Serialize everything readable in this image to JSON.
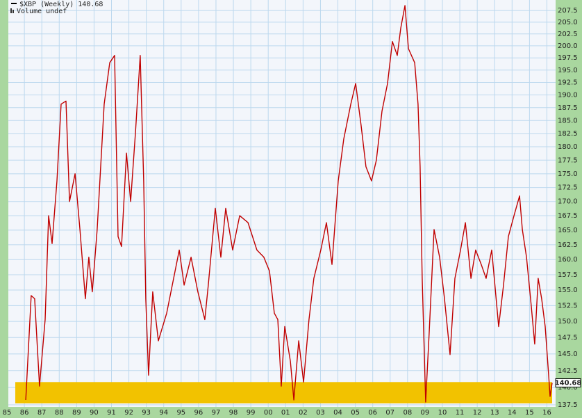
{
  "chart_data": {
    "type": "line",
    "series": [
      {
        "name": "$XBP (Weekly) 140.68",
        "color": "#c00000",
        "values": [
          138.2,
          154.1,
          153.6,
          140.2,
          150.3,
          167.5,
          162.7,
          173.7,
          188.2,
          188.8,
          170.0,
          175.0,
          165.1,
          153.6,
          160.4,
          154.7,
          165.1,
          188.2,
          196.5,
          198.0,
          163.9,
          162.2,
          178.8,
          170.0,
          182.8,
          198.0,
          173.7,
          153.6,
          141.8,
          154.7,
          147.0,
          151.3,
          156.9,
          161.6,
          155.8,
          160.4,
          154.7,
          150.3,
          155.8,
          168.8,
          160.4,
          168.8,
          161.6,
          167.5,
          166.3,
          161.6,
          160.4,
          158.1,
          151.3,
          150.3,
          140.2,
          149.2,
          143.9,
          138.2,
          147.0,
          140.8,
          150.3,
          156.9,
          161.6,
          166.3,
          159.2,
          173.7,
          181.5,
          188.2,
          192.3,
          184.1,
          176.3,
          173.7,
          177.5,
          186.8,
          192.3,
          200.9,
          198.0,
          203.8,
          208.6,
          199.4,
          196.5,
          188.2,
          176.3,
          156.9,
          137.9,
          148.1,
          165.1,
          160.4,
          153.6,
          144.9,
          156.9,
          161.6,
          166.3,
          156.9,
          161.6,
          159.2,
          156.9,
          161.6,
          149.2,
          155.8,
          163.9,
          167.5,
          171.0,
          165.1,
          160.4,
          152.5,
          146.5,
          156.9,
          153.6,
          149.2,
          141.8,
          138.7,
          140.68
        ]
      }
    ],
    "x": [
      1986.08,
      1986.39,
      1986.59,
      1986.87,
      1987.19,
      1987.39,
      1987.59,
      1987.87,
      1988.11,
      1988.39,
      1988.59,
      1988.91,
      1989.19,
      1989.5,
      1989.7,
      1989.9,
      1990.18,
      1990.58,
      1990.9,
      1991.18,
      1991.38,
      1991.58,
      1991.86,
      1992.1,
      1992.38,
      1992.65,
      1992.85,
      1992.97,
      1993.13,
      1993.37,
      1993.69,
      1994.17,
      1994.57,
      1994.89,
      1995.17,
      1995.57,
      1995.96,
      1996.36,
      1996.56,
      1996.96,
      1997.28,
      1997.56,
      1997.96,
      1998.36,
      1998.84,
      1999.35,
      1999.75,
      2000.07,
      2000.35,
      2000.55,
      2000.75,
      2000.95,
      2001.27,
      2001.47,
      2001.75,
      2002.03,
      2002.34,
      2002.62,
      2003.02,
      2003.34,
      2003.66,
      2004.02,
      2004.34,
      2004.74,
      2005.02,
      2005.33,
      2005.61,
      2005.93,
      2006.21,
      2006.53,
      2006.85,
      2007.13,
      2007.41,
      2007.61,
      2007.85,
      2008.05,
      2008.41,
      2008.6,
      2008.72,
      2008.84,
      2009.04,
      2009.24,
      2009.52,
      2009.84,
      2010.12,
      2010.44,
      2010.72,
      2011.04,
      2011.32,
      2011.64,
      2011.91,
      2012.23,
      2012.51,
      2012.83,
      2013.23,
      2013.51,
      2013.79,
      2014.11,
      2014.43,
      2014.59,
      2014.83,
      2015.1,
      2015.3,
      2015.5,
      2015.7,
      2015.9,
      2016.1,
      2016.18,
      2016.3
    ],
    "volume_label": "Volume undef",
    "last_value": 140.68,
    "highlight": {
      "ylim": [
        137.7,
        140.8
      ],
      "color": "#f2c200"
    },
    "xlim": [
      1984.6,
      2016.5
    ],
    "xticks": [
      {
        "value": 1985,
        "label": "85"
      },
      {
        "value": 1986,
        "label": "86"
      },
      {
        "value": 1987,
        "label": "87"
      },
      {
        "value": 1988,
        "label": "88"
      },
      {
        "value": 1989,
        "label": "89"
      },
      {
        "value": 1990,
        "label": "90"
      },
      {
        "value": 1991,
        "label": "91"
      },
      {
        "value": 1992,
        "label": "92"
      },
      {
        "value": 1993,
        "label": "93"
      },
      {
        "value": 1994,
        "label": "94"
      },
      {
        "value": 1995,
        "label": "95"
      },
      {
        "value": 1996,
        "label": "96"
      },
      {
        "value": 1997,
        "label": "97"
      },
      {
        "value": 1998,
        "label": "98"
      },
      {
        "value": 1999,
        "label": "99"
      },
      {
        "value": 2000,
        "label": "00"
      },
      {
        "value": 2001,
        "label": "01"
      },
      {
        "value": 2002,
        "label": "02"
      },
      {
        "value": 2003,
        "label": "03"
      },
      {
        "value": 2004,
        "label": "04"
      },
      {
        "value": 2005,
        "label": "05"
      },
      {
        "value": 2006,
        "label": "06"
      },
      {
        "value": 2007,
        "label": "07"
      },
      {
        "value": 2008,
        "label": "08"
      },
      {
        "value": 2009,
        "label": "09"
      },
      {
        "value": 2010,
        "label": "10"
      },
      {
        "value": 2011,
        "label": "11"
      },
      {
        "value": 2012,
        "label": "12"
      },
      {
        "value": 2013,
        "label": "13"
      },
      {
        "value": 2014,
        "label": "14"
      },
      {
        "value": 2015,
        "label": "15"
      },
      {
        "value": 2016,
        "label": "16"
      }
    ],
    "ylim": [
      137.2,
      209.8
    ],
    "log_scale": true,
    "grid": true,
    "yticks": [
      137.5,
      {
        "value": 140,
        "label": "140.0"
      },
      142.5,
      {
        "value": 145,
        "label": "145.0"
      },
      147.5,
      {
        "value": 150,
        "label": "150.0"
      },
      152.5,
      {
        "value": 155,
        "label": "155.0"
      },
      157.5,
      {
        "value": 160,
        "label": "160.0"
      },
      162.5,
      {
        "value": 165,
        "label": "165.0"
      },
      167.5,
      {
        "value": 170,
        "label": "170.0"
      },
      172.5,
      {
        "value": 175,
        "label": "175.0"
      },
      177.5,
      {
        "value": 180,
        "label": "180.0"
      },
      182.5,
      {
        "value": 185,
        "label": "185.0"
      },
      187.5,
      {
        "value": 190,
        "label": "190.0"
      },
      192.5,
      {
        "value": 195,
        "label": "195.0"
      },
      197.5,
      {
        "value": 200,
        "label": "200.0"
      },
      202.5,
      {
        "value": 205,
        "label": "205.0"
      },
      207.5
    ]
  }
}
